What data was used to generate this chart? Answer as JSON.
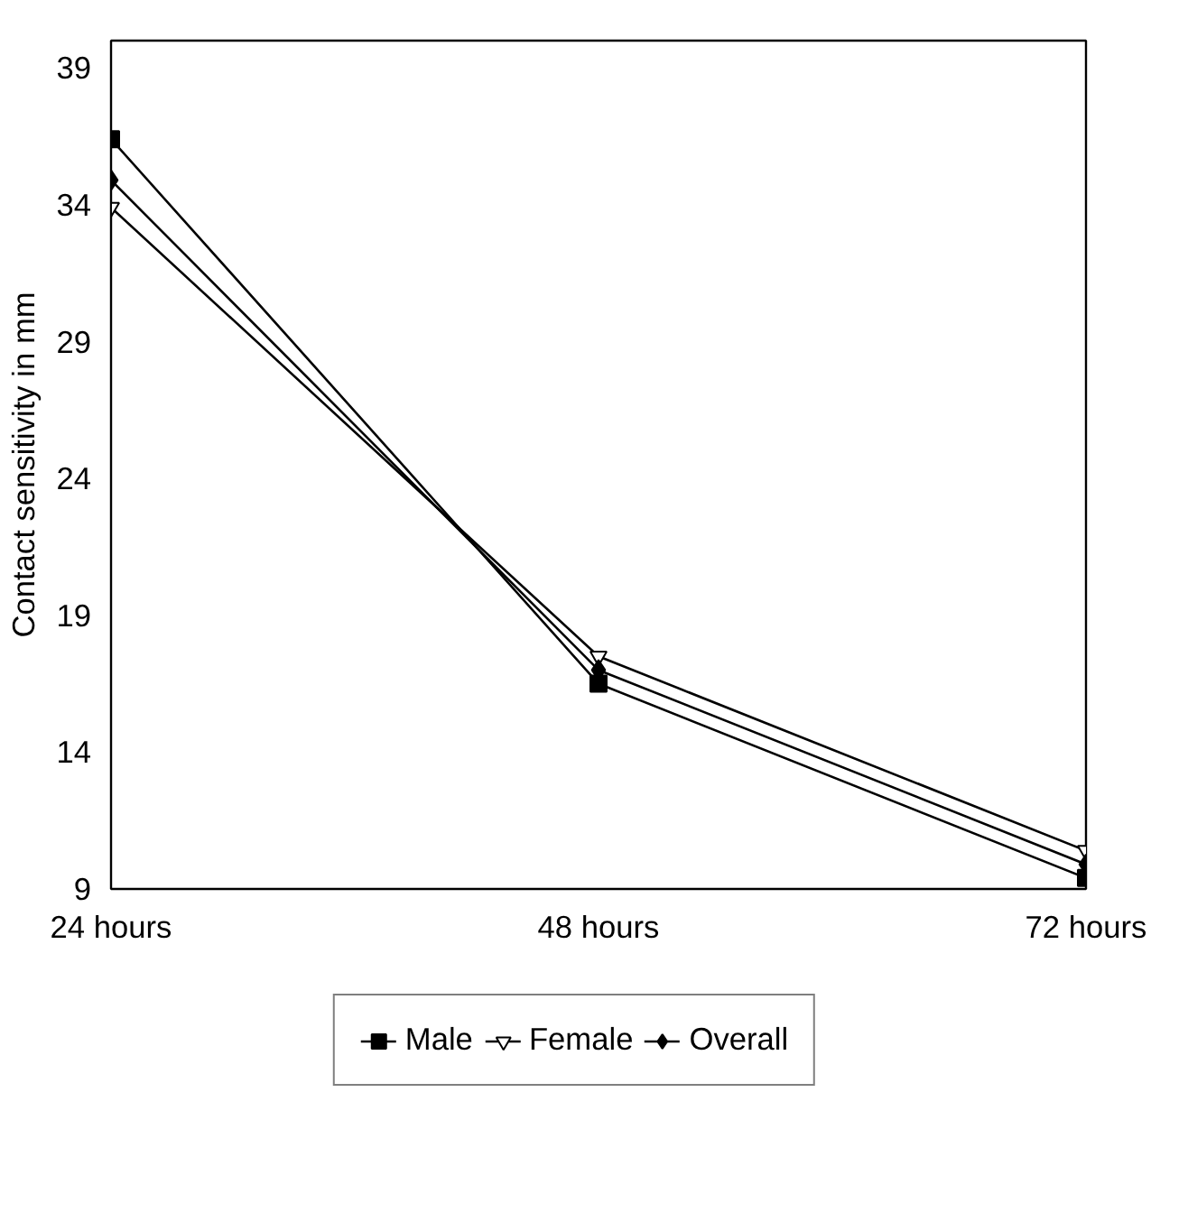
{
  "chart_data": {
    "type": "line",
    "ylabel": "Contact sensitivity in mm",
    "categories": [
      "24 hours",
      "48 hours",
      "72 hours"
    ],
    "series": [
      {
        "name": "Male",
        "color": "#000000",
        "marker": "square",
        "values": [
          36.4,
          16.5,
          9.4
        ]
      },
      {
        "name": "Female",
        "color": "#000000",
        "marker": "triangle",
        "values": [
          33.9,
          17.5,
          10.4
        ]
      },
      {
        "name": "Overall",
        "color": "#000000",
        "marker": "diamond",
        "values": [
          34.9,
          17.0,
          9.9
        ]
      }
    ],
    "ylim": [
      9,
      40
    ],
    "yticks": [
      9,
      14,
      19,
      24,
      29,
      34,
      39
    ],
    "grid": false,
    "legend": "bottom",
    "line_style": "solid"
  }
}
